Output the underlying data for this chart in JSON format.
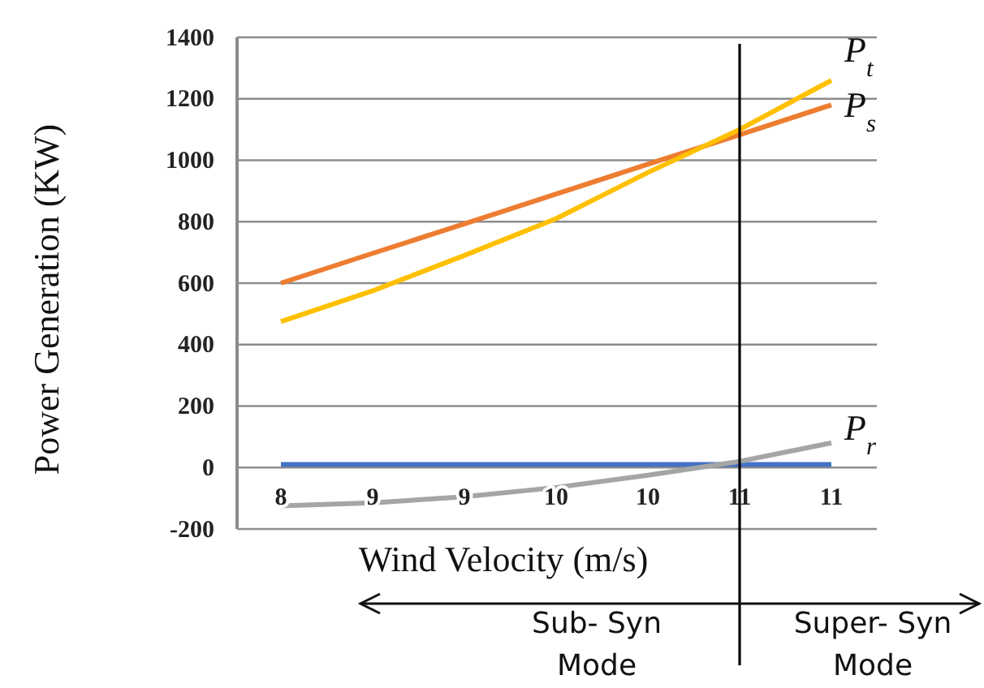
{
  "chart_data": {
    "type": "line",
    "xlabel": "Wind Velocity (m/s)",
    "ylabel": "Power Generation (KW)",
    "categories": [
      "8",
      "9",
      "9",
      "10",
      "10",
      "11",
      "11"
    ],
    "series": [
      {
        "color": "#4472c4",
        "values": [
          10,
          10,
          10,
          10,
          10,
          10,
          10
        ]
      },
      {
        "name": "P$_{s}$",
        "color": "#ed7d31",
        "values": [
          600,
          697,
          793,
          890,
          987,
          1083,
          1180
        ]
      },
      {
        "name": "P$_{t}$",
        "color": "#ffc000",
        "values": [
          475,
          575,
          690,
          810,
          960,
          1100,
          1260
        ]
      },
      {
        "name": "P$_{r}$",
        "color": "#a5a5a5",
        "values": [
          -125,
          -115,
          -95,
          -65,
          -25,
          20,
          80
        ]
      }
    ],
    "ylim": [
      -200,
      1400
    ],
    "yticks": [
      -200,
      0,
      200,
      400,
      600,
      800,
      1000,
      1200,
      1400
    ],
    "grid": "y",
    "ref_lines": [
      {
        "axis": "x",
        "value": "11",
        "color": "#000000"
      }
    ],
    "annotations": [
      "Sub- Syn Mode",
      "Super- Syn Mode"
    ],
    "marker": "none",
    "line_style": "solid"
  }
}
